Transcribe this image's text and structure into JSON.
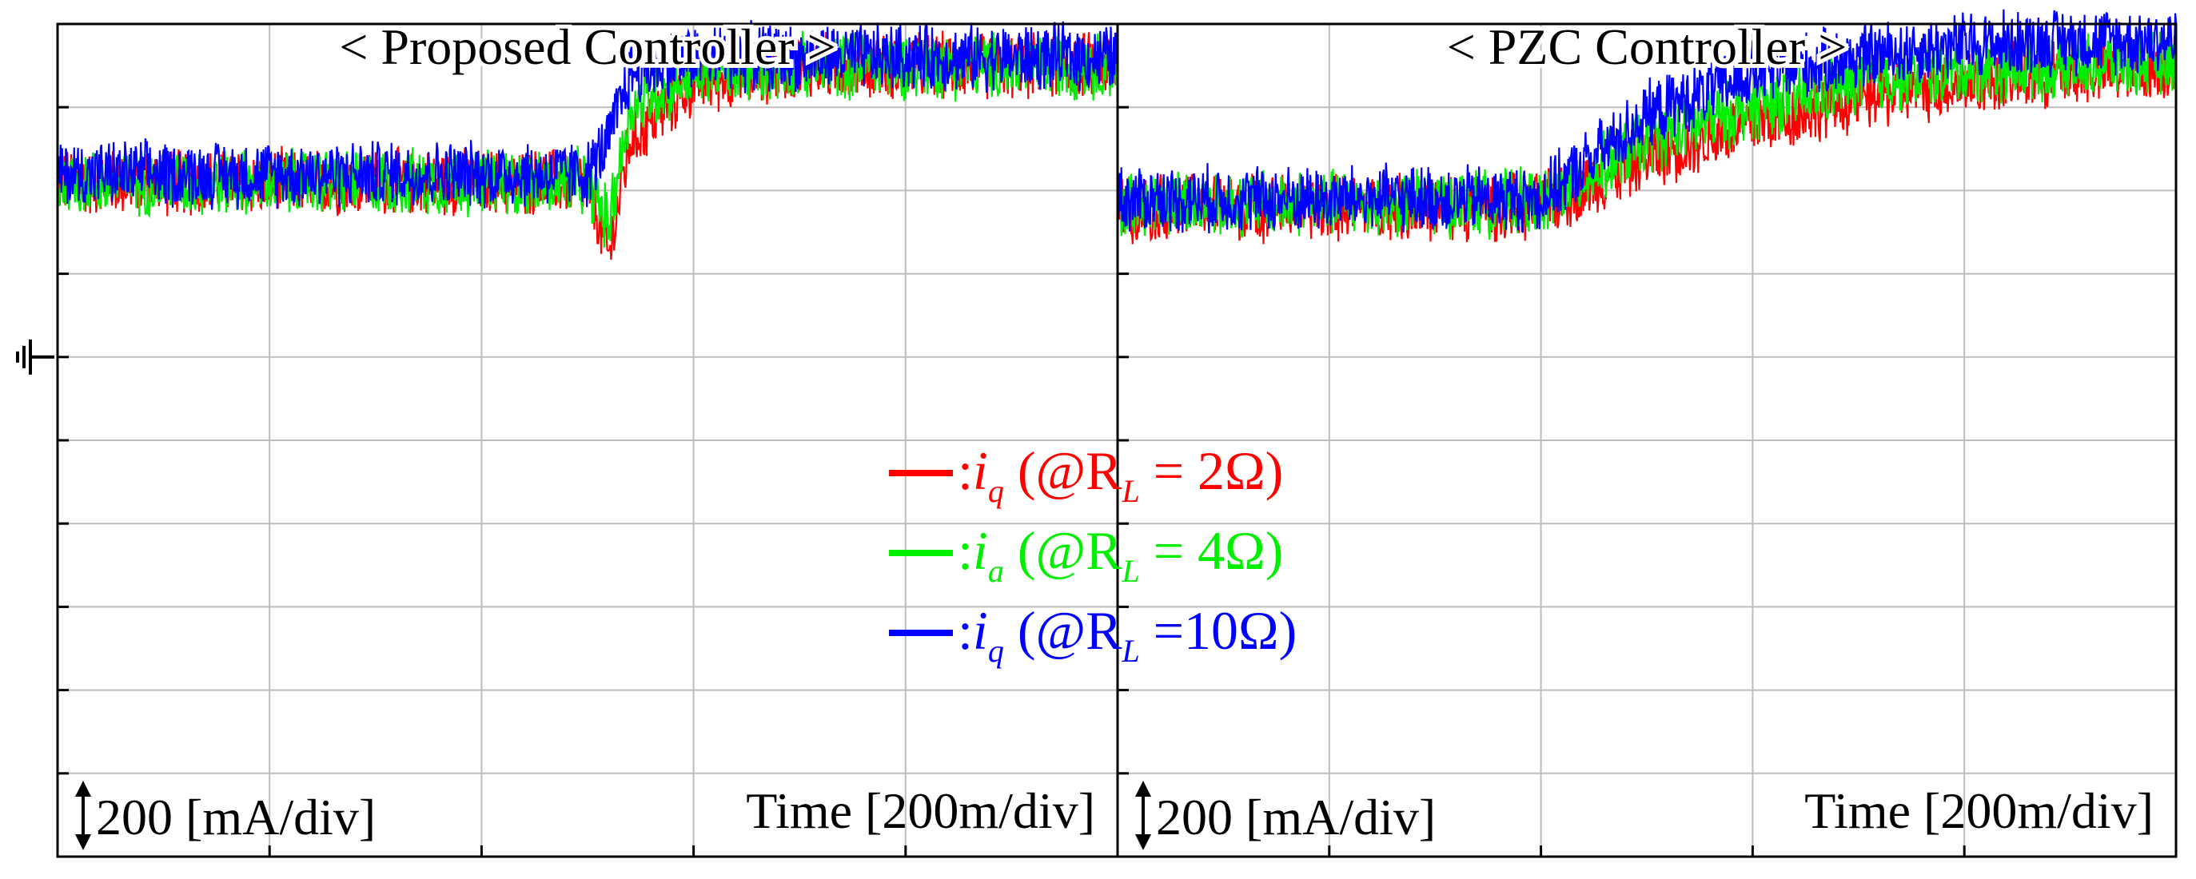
{
  "chart_data": [
    {
      "type": "line",
      "title": "< Proposed Controller >",
      "scale_label": "200 [mA/div]",
      "time_label": "Time [200m/div]",
      "x_divisions": 5,
      "y_divisions": 10,
      "ground_division": 6,
      "series": [
        {
          "name": "R_L = 2Ω",
          "color": "#ff0000",
          "x": [
            0,
            0.5,
            1.0,
            1.5,
            2.0,
            2.5,
            2.6,
            2.7,
            3.0,
            3.5,
            4.0,
            4.5,
            5.0
          ],
          "y": [
            8.1,
            8.1,
            8.1,
            8.1,
            8.1,
            8.1,
            7.2,
            8.6,
            9.3,
            9.5,
            9.5,
            9.5,
            9.5
          ]
        },
        {
          "name": "R_L = 4Ω",
          "color": "#00ee00",
          "x": [
            0,
            0.5,
            1.0,
            1.5,
            2.0,
            2.5,
            2.6,
            2.7,
            3.0,
            3.5,
            4.0,
            4.5,
            5.0
          ],
          "y": [
            8.1,
            8.1,
            8.1,
            8.1,
            8.1,
            8.1,
            7.6,
            9.0,
            9.4,
            9.5,
            9.5,
            9.5,
            9.5
          ]
        },
        {
          "name": "R_L = 10Ω",
          "color": "#0000ff",
          "x": [
            0,
            0.5,
            1.0,
            1.5,
            2.0,
            2.5,
            2.6,
            2.7,
            3.0,
            3.5,
            4.0,
            4.5,
            5.0
          ],
          "y": [
            8.2,
            8.2,
            8.2,
            8.2,
            8.2,
            8.2,
            8.6,
            9.4,
            9.6,
            9.6,
            9.6,
            9.6,
            9.6
          ]
        }
      ]
    },
    {
      "type": "line",
      "title": "< PZC Controller >",
      "scale_label": "200 [mA/div]",
      "time_label": "Time [200m/div]",
      "x_divisions": 5,
      "y_divisions": 10,
      "ground_division": 6,
      "series": [
        {
          "name": "R_L = 2Ω",
          "color": "#ff0000",
          "x": [
            0,
            0.5,
            1.0,
            1.5,
            2.0,
            2.5,
            3.0,
            3.5,
            4.0,
            4.5,
            5.0
          ],
          "y": [
            7.8,
            7.8,
            7.8,
            7.8,
            7.8,
            8.4,
            8.8,
            9.1,
            9.3,
            9.4,
            9.5
          ]
        },
        {
          "name": "R_L = 4Ω",
          "color": "#00ee00",
          "x": [
            0,
            0.5,
            1.0,
            1.5,
            2.0,
            2.5,
            3.0,
            3.5,
            4.0,
            4.5,
            5.0
          ],
          "y": [
            7.85,
            7.85,
            7.85,
            7.85,
            7.85,
            8.6,
            9.0,
            9.3,
            9.45,
            9.5,
            9.55
          ]
        },
        {
          "name": "R_L = 10Ω",
          "color": "#0000ff",
          "x": [
            0,
            0.5,
            1.0,
            1.5,
            2.0,
            2.5,
            3.0,
            3.5,
            4.0,
            4.5,
            5.0
          ],
          "y": [
            7.9,
            7.9,
            7.9,
            7.9,
            7.9,
            8.9,
            9.4,
            9.6,
            9.75,
            9.8,
            9.8
          ]
        }
      ]
    }
  ],
  "legend": [
    {
      "var": "i",
      "sub": "q",
      "expr": "(@R",
      "sub2": "L",
      "rest": " = 2Ω)",
      "color": "#ff0000"
    },
    {
      "var": "i",
      "sub": "a",
      "expr": "(@R",
      "sub2": "L",
      "rest": " = 4Ω)",
      "color": "#00ee00"
    },
    {
      "var": "i",
      "sub": "q",
      "expr": "(@R",
      "sub2": "L",
      "rest": " =10Ω)",
      "color": "#0000ff"
    }
  ],
  "colors": {
    "grid": "#bdbdbd",
    "frame": "#000000"
  },
  "icons": {
    "ground": "ground-marker-icon",
    "scale": "vertical-double-arrow-icon"
  }
}
